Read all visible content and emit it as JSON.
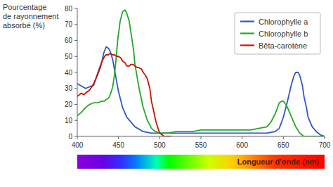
{
  "chart_data": {
    "type": "line",
    "xlabel": "Longueur d'onde (nm)",
    "ylabel": "Pourcentage\nde rayonnement\nabsorbé (%)",
    "xlim": [
      400,
      700
    ],
    "ylim": [
      0,
      80
    ],
    "xticks": [
      400,
      450,
      500,
      550,
      600,
      650,
      700
    ],
    "yticks": [
      0,
      10,
      20,
      30,
      40,
      50,
      60,
      70,
      80
    ],
    "legend": "upper right",
    "series": [
      {
        "name": "Chlorophylle a",
        "color": "#3355cc",
        "x": [
          400,
          410,
          420,
          425,
          430,
          432,
          435,
          438,
          440,
          443,
          445,
          450,
          455,
          460,
          470,
          480,
          490,
          500,
          510,
          520,
          530,
          540,
          550,
          560,
          570,
          580,
          590,
          600,
          610,
          620,
          630,
          640,
          645,
          650,
          655,
          660,
          663,
          665,
          668,
          670,
          673,
          675,
          678,
          680,
          685,
          690,
          695,
          700
        ],
        "values": [
          33,
          30,
          32,
          40,
          47,
          52,
          56,
          55,
          53,
          48,
          42,
          28,
          18,
          12,
          6,
          3,
          2,
          2,
          2,
          2,
          2,
          2,
          2,
          2,
          2,
          2,
          2,
          2,
          2,
          2,
          2,
          3,
          5,
          12,
          22,
          33,
          38,
          40,
          40,
          38,
          32,
          25,
          18,
          12,
          6,
          3,
          1,
          0
        ]
      },
      {
        "name": "Chlorophylle b",
        "color": "#22aa22",
        "x": [
          400,
          405,
          410,
          415,
          420,
          425,
          430,
          433,
          435,
          438,
          440,
          443,
          445,
          447,
          449,
          452,
          455,
          458,
          460,
          463,
          465,
          468,
          470,
          475,
          480,
          485,
          490,
          495,
          500,
          510,
          520,
          530,
          540,
          550,
          560,
          570,
          580,
          590,
          600,
          610,
          620,
          630,
          635,
          640,
          643,
          645,
          648,
          650,
          653,
          655,
          660,
          665,
          670,
          675,
          680,
          685,
          690,
          695,
          700
        ],
        "values": [
          13,
          15,
          18,
          20,
          21,
          21,
          22,
          22,
          23,
          24,
          26,
          31,
          38,
          48,
          60,
          72,
          78,
          79,
          77,
          72,
          65,
          55,
          45,
          30,
          18,
          10,
          5,
          3,
          2,
          2,
          3,
          3,
          3,
          4,
          4,
          4,
          4,
          4,
          4,
          4,
          5,
          6,
          9,
          14,
          18,
          21,
          22,
          22,
          20,
          18,
          12,
          6,
          2,
          0,
          0,
          0,
          0,
          0,
          0
        ]
      },
      {
        "name": "Bêta-carotène",
        "color": "#cc1100",
        "x": [
          400,
          405,
          408,
          410,
          415,
          420,
          425,
          428,
          430,
          433,
          435,
          438,
          440,
          443,
          445,
          448,
          450,
          453,
          455,
          458,
          460,
          463,
          465,
          468,
          470,
          473,
          475,
          478,
          480,
          483,
          485,
          488,
          490,
          493,
          495,
          498,
          500,
          503,
          505,
          508,
          510,
          512,
          514
        ],
        "values": [
          25,
          27,
          26,
          27,
          29,
          33,
          39,
          43,
          47,
          50,
          51,
          51,
          52,
          51,
          51,
          50,
          50,
          49,
          47,
          46,
          44,
          44,
          45,
          45,
          44,
          43,
          43,
          42,
          40,
          38,
          36,
          30,
          22,
          15,
          10,
          5,
          2,
          1,
          0,
          0,
          0,
          0,
          0
        ]
      }
    ]
  }
}
